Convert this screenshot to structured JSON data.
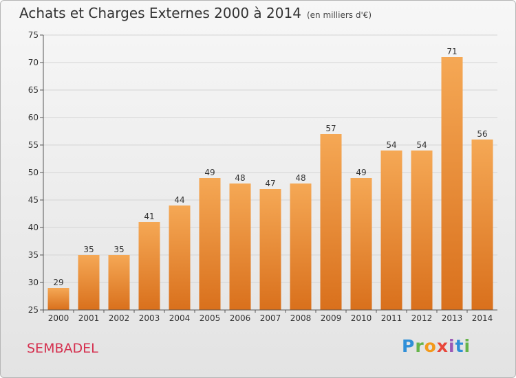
{
  "title": "Achats et Charges Externes 2000 à 2014",
  "subtitle": "(en milliers d'€)",
  "commune": "SEMBADEL",
  "logo": [
    "P",
    "r",
    "o",
    "x",
    "i",
    "t",
    "i"
  ],
  "chart_data": {
    "type": "bar",
    "title": "Achats et Charges Externes 2000 à 2014",
    "subtitle": "(en milliers d'€)",
    "categories": [
      "2000",
      "2001",
      "2002",
      "2003",
      "2004",
      "2005",
      "2006",
      "2007",
      "2008",
      "2009",
      "2010",
      "2011",
      "2012",
      "2013",
      "2014"
    ],
    "values": [
      29,
      35,
      35,
      41,
      44,
      49,
      48,
      47,
      48,
      57,
      49,
      54,
      54,
      71,
      56
    ],
    "ylim": [
      25,
      75
    ],
    "yticks": [
      25,
      30,
      35,
      40,
      45,
      50,
      55,
      60,
      65,
      70,
      75
    ],
    "xlabel": "",
    "ylabel": "",
    "grid": "horizontal",
    "colors": {
      "bar_top": "#f5a855",
      "bar_bottom": "#d9701c",
      "grid": "#d4d4d4",
      "axis": "#555555"
    }
  }
}
